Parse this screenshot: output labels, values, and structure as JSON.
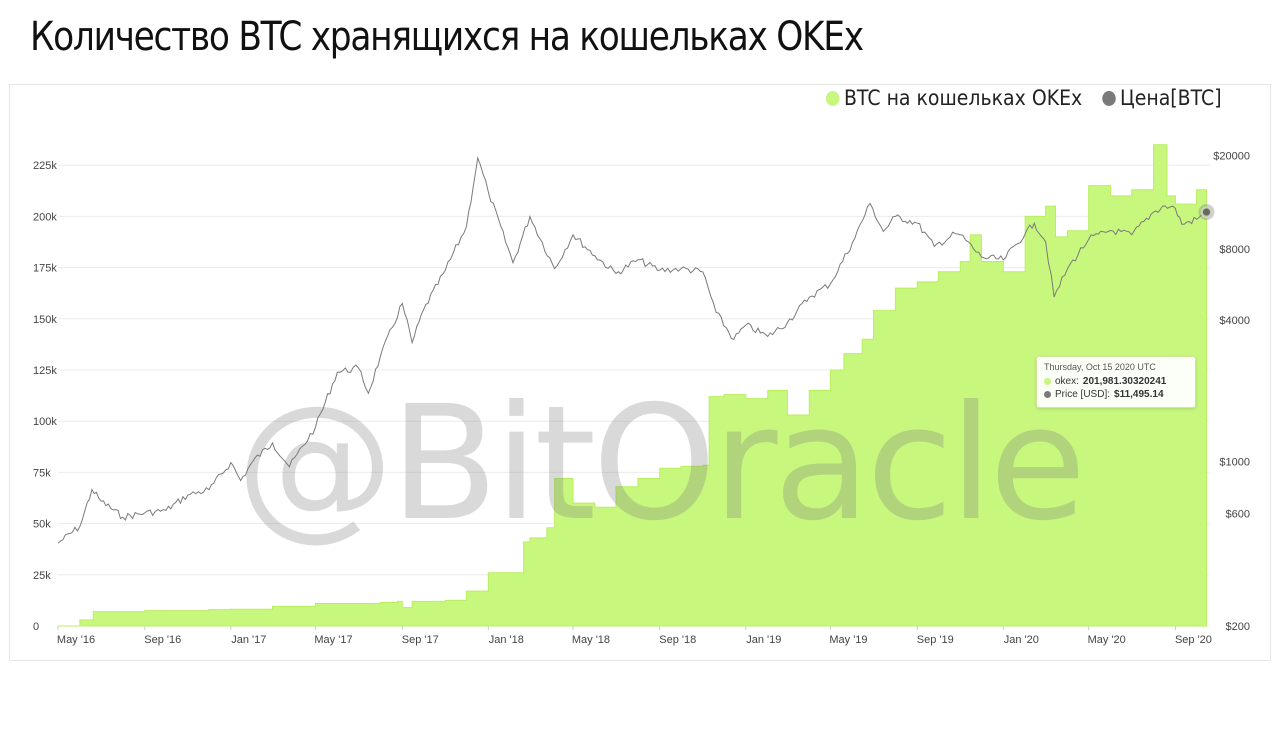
{
  "title": "Количество BTC хранящихся на кошельках OKEx",
  "legend": {
    "items": [
      {
        "label": "BTC на кошельках OKEx",
        "color": "#c8f77e"
      },
      {
        "label": "Цена[BTC]",
        "color": "#7a7a7a"
      }
    ]
  },
  "watermark": "@BitOracle",
  "tooltip": {
    "date": "Thursday, Oct 15 2020 UTC",
    "series1_label": "okex:",
    "series1_value": "201,981.30320241",
    "series2_label": "Price [USD]:",
    "series2_value": "$11,495.14"
  },
  "chart_data": {
    "type": "area",
    "x_tick_labels": [
      "May '16",
      "Sep '16",
      "Jan '17",
      "May '17",
      "Sep '17",
      "Jan '18",
      "May '18",
      "Sep '18",
      "Jan '19",
      "May '19",
      "Sep '19",
      "Jan '20",
      "May '20",
      "Sep '20"
    ],
    "y_left": {
      "ticks": [
        0,
        25000,
        50000,
        75000,
        100000,
        125000,
        150000,
        175000,
        200000,
        225000
      ],
      "tick_labels": [
        "0",
        "25k",
        "50k",
        "75k",
        "100k",
        "125k",
        "150k",
        "175k",
        "200k",
        "225k"
      ],
      "ylim": [
        0,
        250000
      ]
    },
    "y_right": {
      "scale": "log",
      "ticks": [
        200,
        600,
        1000,
        4000,
        8000,
        20000
      ],
      "tick_labels": [
        "$200",
        "$600",
        "$1000",
        "$4000",
        "$8000",
        "$20000"
      ],
      "ylim": [
        200,
        30000
      ]
    },
    "grid": true,
    "legend_position": "top-right",
    "series": [
      {
        "name": "BTC на кошельках OKEx",
        "type": "area",
        "axis": "left",
        "color": "#c8f77e",
        "points": [
          [
            "2016-05-01",
            0
          ],
          [
            "2016-06-01",
            3000
          ],
          [
            "2016-06-20",
            7000
          ],
          [
            "2016-09-01",
            7500
          ],
          [
            "2016-12-01",
            8000
          ],
          [
            "2017-01-01",
            8200
          ],
          [
            "2017-03-01",
            9500
          ],
          [
            "2017-05-01",
            11000
          ],
          [
            "2017-08-01",
            11500
          ],
          [
            "2017-08-25",
            12000
          ],
          [
            "2017-09-01",
            9000
          ],
          [
            "2017-09-15",
            12000
          ],
          [
            "2017-11-01",
            12500
          ],
          [
            "2017-12-01",
            17000
          ],
          [
            "2018-01-01",
            26000
          ],
          [
            "2018-02-15",
            26000
          ],
          [
            "2018-02-20",
            41000
          ],
          [
            "2018-03-01",
            43000
          ],
          [
            "2018-03-25",
            48000
          ],
          [
            "2018-04-05",
            72000
          ],
          [
            "2018-05-01",
            60000
          ],
          [
            "2018-06-01",
            58000
          ],
          [
            "2018-07-01",
            68000
          ],
          [
            "2018-08-01",
            72000
          ],
          [
            "2018-09-01",
            77000
          ],
          [
            "2018-10-01",
            78000
          ],
          [
            "2018-11-01",
            78500
          ],
          [
            "2018-11-10",
            112000
          ],
          [
            "2018-12-01",
            113000
          ],
          [
            "2019-01-01",
            111000
          ],
          [
            "2019-02-01",
            115000
          ],
          [
            "2019-03-01",
            103000
          ],
          [
            "2019-04-01",
            115000
          ],
          [
            "2019-05-01",
            125000
          ],
          [
            "2019-05-20",
            133000
          ],
          [
            "2019-06-15",
            140000
          ],
          [
            "2019-07-01",
            154000
          ],
          [
            "2019-08-01",
            165000
          ],
          [
            "2019-09-01",
            168000
          ],
          [
            "2019-10-01",
            173000
          ],
          [
            "2019-11-01",
            178000
          ],
          [
            "2019-11-15",
            191000
          ],
          [
            "2019-12-01",
            178000
          ],
          [
            "2020-01-01",
            173000
          ],
          [
            "2020-02-01",
            200000
          ],
          [
            "2020-03-01",
            205000
          ],
          [
            "2020-03-15",
            190000
          ],
          [
            "2020-04-01",
            193000
          ],
          [
            "2020-05-01",
            215000
          ],
          [
            "2020-06-01",
            210000
          ],
          [
            "2020-07-01",
            213000
          ],
          [
            "2020-08-01",
            235000
          ],
          [
            "2020-08-20",
            210000
          ],
          [
            "2020-09-01",
            206000
          ],
          [
            "2020-10-01",
            213000
          ],
          [
            "2020-10-15",
            201981
          ]
        ]
      },
      {
        "name": "Цена[BTC]",
        "type": "line",
        "axis": "right",
        "color": "#7a7a7a",
        "points": [
          [
            "2016-05-01",
            450
          ],
          [
            "2016-06-01",
            530
          ],
          [
            "2016-06-18",
            760
          ],
          [
            "2016-07-01",
            680
          ],
          [
            "2016-08-01",
            580
          ],
          [
            "2016-09-01",
            605
          ],
          [
            "2016-10-01",
            620
          ],
          [
            "2016-11-01",
            720
          ],
          [
            "2016-12-01",
            760
          ],
          [
            "2017-01-01",
            990
          ],
          [
            "2017-01-15",
            830
          ],
          [
            "2017-02-01",
            1000
          ],
          [
            "2017-03-01",
            1200
          ],
          [
            "2017-03-25",
            950
          ],
          [
            "2017-05-01",
            1400
          ],
          [
            "2017-06-01",
            2400
          ],
          [
            "2017-07-01",
            2500
          ],
          [
            "2017-07-15",
            1950
          ],
          [
            "2017-08-01",
            2800
          ],
          [
            "2017-09-01",
            4700
          ],
          [
            "2017-09-15",
            3200
          ],
          [
            "2017-10-01",
            4400
          ],
          [
            "2017-11-01",
            6500
          ],
          [
            "2017-12-01",
            10000
          ],
          [
            "2017-12-17",
            19500
          ],
          [
            "2018-01-01",
            14000
          ],
          [
            "2018-02-05",
            7000
          ],
          [
            "2018-03-01",
            11000
          ],
          [
            "2018-04-05",
            6600
          ],
          [
            "2018-05-01",
            9200
          ],
          [
            "2018-06-01",
            7500
          ],
          [
            "2018-07-01",
            6300
          ],
          [
            "2018-08-01",
            7200
          ],
          [
            "2018-09-01",
            6500
          ],
          [
            "2018-10-01",
            6600
          ],
          [
            "2018-11-01",
            6400
          ],
          [
            "2018-11-20",
            4300
          ],
          [
            "2018-12-15",
            3300
          ],
          [
            "2019-01-01",
            3800
          ],
          [
            "2019-02-01",
            3400
          ],
          [
            "2019-03-01",
            3900
          ],
          [
            "2019-04-01",
            5000
          ],
          [
            "2019-05-01",
            5700
          ],
          [
            "2019-06-01",
            8500
          ],
          [
            "2019-06-26",
            12500
          ],
          [
            "2019-07-15",
            9500
          ],
          [
            "2019-08-01",
            11000
          ],
          [
            "2019-09-01",
            10300
          ],
          [
            "2019-09-25",
            8200
          ],
          [
            "2019-10-25",
            9300
          ],
          [
            "2019-11-01",
            9200
          ],
          [
            "2019-12-01",
            7400
          ],
          [
            "2020-01-01",
            7200
          ],
          [
            "2020-02-01",
            9300
          ],
          [
            "2020-02-14",
            10300
          ],
          [
            "2020-03-01",
            8600
          ],
          [
            "2020-03-13",
            5000
          ],
          [
            "2020-04-01",
            6600
          ],
          [
            "2020-05-01",
            8800
          ],
          [
            "2020-06-01",
            9600
          ],
          [
            "2020-07-01",
            9200
          ],
          [
            "2020-08-01",
            11500
          ],
          [
            "2020-08-17",
            12200
          ],
          [
            "2020-09-01",
            11900
          ],
          [
            "2020-09-10",
            10200
          ],
          [
            "2020-10-01",
            10700
          ],
          [
            "2020-10-15",
            11495
          ]
        ]
      }
    ]
  }
}
